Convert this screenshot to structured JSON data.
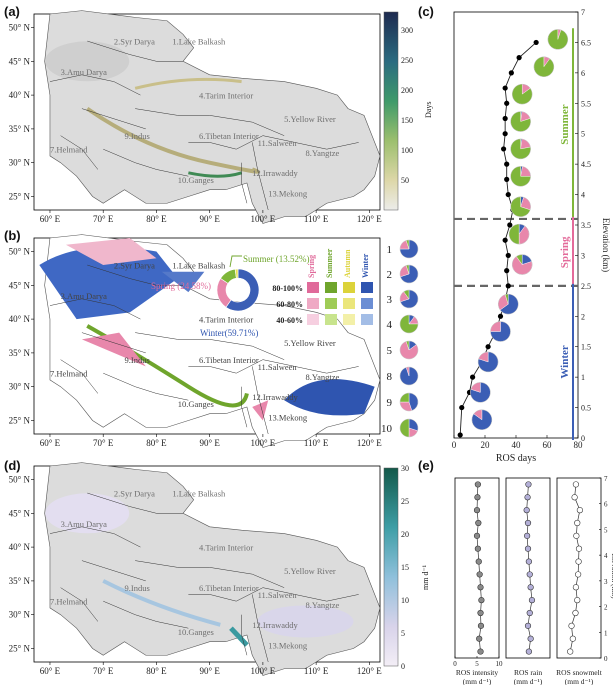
{
  "figure": {
    "panel_labels": [
      "(a)",
      "(b)",
      "(c)",
      "(d)",
      "(e)"
    ]
  },
  "map_axes": {
    "lon_ticks": [
      "60° E",
      "70° E",
      "80° E",
      "90° E",
      "100° E",
      "110° E",
      "120° E"
    ],
    "lat_ticks": [
      "50° N",
      "45° N",
      "40° N",
      "35° N",
      "30° N",
      "25° N"
    ]
  },
  "basins": [
    {
      "id": "2",
      "label": "2.Syr Darya"
    },
    {
      "id": "1",
      "label": "1.Lake Balkash"
    },
    {
      "id": "3",
      "label": "3.Amu Darya"
    },
    {
      "id": "4",
      "label": "4.Tarim Interior"
    },
    {
      "id": "5",
      "label": "5.Yellow River"
    },
    {
      "id": "6",
      "label": "6.Tibetan Interior"
    },
    {
      "id": "7",
      "label": "7.Helmand"
    },
    {
      "id": "8",
      "label": "8.Yangtze"
    },
    {
      "id": "9",
      "label": "9.Indus"
    },
    {
      "id": "10",
      "label": "10.Ganges"
    },
    {
      "id": "11",
      "label": "11.Salween"
    },
    {
      "id": "12",
      "label": "12.Irrawaddy"
    },
    {
      "id": "13",
      "label": "13.Mekong"
    }
  ],
  "panel_a": {
    "colorbar": {
      "label": "Days",
      "ticks": [
        "300",
        "250",
        "200",
        "150",
        "100",
        "50"
      ],
      "range": [
        0,
        330
      ]
    }
  },
  "panel_d": {
    "colorbar": {
      "label": "mm d⁻¹",
      "ticks": [
        "30",
        "25",
        "20",
        "15",
        "10",
        "5",
        "0"
      ],
      "range": [
        0,
        30
      ]
    }
  },
  "panel_b": {
    "donut": {
      "labels": [
        "Summer (13.52%)",
        "Spring (24.58%)",
        "Winter(59.71%)"
      ],
      "slices": [
        {
          "season": "Winter",
          "percent": 59.71,
          "color": "#3b5eb5"
        },
        {
          "season": "Spring",
          "percent": 24.58,
          "color": "#e887ab"
        },
        {
          "season": "Summer",
          "percent": 13.52,
          "color": "#7fb63a"
        },
        {
          "season": "Autumn",
          "percent": 2.19,
          "color": "#e8e25a"
        }
      ]
    },
    "legend": {
      "columns": [
        "Spring",
        "Summer",
        "Autumn",
        "Winter"
      ],
      "rows": [
        "80-100%",
        "60-80%",
        "40-60%"
      ],
      "colors": [
        [
          "#e06a9a",
          "#6fa52c",
          "#dcd33a",
          "#2f55b0"
        ],
        [
          "#efa9c4",
          "#9fcc56",
          "#ebe67b",
          "#6b8ed4"
        ],
        [
          "#f6cfe0",
          "#c8e48d",
          "#f3f0a8",
          "#a3bde6"
        ]
      ]
    },
    "basin_pies": [
      {
        "label": "1",
        "winter": 75,
        "spring": 20,
        "summer": 5,
        "autumn": 0
      },
      {
        "label": "2",
        "winter": 70,
        "spring": 25,
        "summer": 5,
        "autumn": 0
      },
      {
        "label": "3",
        "winter": 70,
        "spring": 20,
        "summer": 10,
        "autumn": 0
      },
      {
        "label": "4",
        "winter": 10,
        "spring": 15,
        "summer": 75,
        "autumn": 0
      },
      {
        "label": "5",
        "winter": 15,
        "spring": 80,
        "summer": 5,
        "autumn": 0
      },
      {
        "label": "8",
        "winter": 95,
        "spring": 5,
        "summer": 0,
        "autumn": 0
      },
      {
        "label": "9",
        "winter": 45,
        "spring": 30,
        "summer": 25,
        "autumn": 0
      },
      {
        "label": "10",
        "winter": 30,
        "spring": 20,
        "summer": 50,
        "autumn": 0
      }
    ]
  },
  "panel_c": {
    "chart_data": {
      "type": "line",
      "xlabel": "ROS days",
      "ylabel": "Elevation (km)",
      "xlim": [
        0,
        80
      ],
      "ylim": [
        0,
        7
      ],
      "xticks": [
        "0",
        "20",
        "40",
        "60",
        "80"
      ],
      "yticks": [
        "0",
        "0.5",
        "1",
        "1.5",
        "2",
        "2.5",
        "3",
        "3.5",
        "4",
        "4.5",
        "5",
        "5.5",
        "6",
        "6.5",
        "7"
      ],
      "zone_labels": [
        "Summer",
        "Spring",
        "Winter"
      ],
      "zone_colors": {
        "Summer": "#7fb63a",
        "Spring": "#e36a9a",
        "Winter": "#3b5eb5"
      },
      "zone_boundaries_km": [
        2.5,
        3.6
      ],
      "points": [
        {
          "elev": 0.05,
          "days": 4
        },
        {
          "elev": 0.5,
          "days": 5
        },
        {
          "elev": 0.75,
          "days": 10
        },
        {
          "elev": 1.0,
          "days": 12
        },
        {
          "elev": 1.25,
          "days": 18
        },
        {
          "elev": 1.5,
          "days": 22
        },
        {
          "elev": 1.75,
          "days": 27
        },
        {
          "elev": 2.0,
          "days": 30
        },
        {
          "elev": 2.25,
          "days": 33
        },
        {
          "elev": 2.5,
          "days": 35
        },
        {
          "elev": 2.75,
          "days": 34
        },
        {
          "elev": 3.0,
          "days": 35
        },
        {
          "elev": 3.25,
          "days": 33
        },
        {
          "elev": 3.5,
          "days": 36
        },
        {
          "elev": 3.75,
          "days": 38
        },
        {
          "elev": 4.0,
          "days": 35
        },
        {
          "elev": 4.25,
          "days": 34
        },
        {
          "elev": 4.5,
          "days": 34
        },
        {
          "elev": 4.75,
          "days": 32
        },
        {
          "elev": 5.0,
          "days": 33
        },
        {
          "elev": 5.25,
          "days": 33
        },
        {
          "elev": 5.5,
          "days": 34
        },
        {
          "elev": 5.75,
          "days": 33
        },
        {
          "elev": 6.0,
          "days": 37
        },
        {
          "elev": 6.25,
          "days": 42
        },
        {
          "elev": 6.5,
          "days": 53
        }
      ],
      "pies": [
        {
          "elev": 0.3,
          "days": 18,
          "winter": 85,
          "spring": 15,
          "summer": 0
        },
        {
          "elev": 0.75,
          "days": 17,
          "winter": 80,
          "spring": 20,
          "summer": 0
        },
        {
          "elev": 1.25,
          "days": 22,
          "winter": 80,
          "spring": 20,
          "summer": 0
        },
        {
          "elev": 1.75,
          "days": 30,
          "winter": 75,
          "spring": 25,
          "summer": 0
        },
        {
          "elev": 2.2,
          "days": 35,
          "winter": 65,
          "spring": 30,
          "summer": 5
        },
        {
          "elev": 2.85,
          "days": 44,
          "winter": 20,
          "spring": 70,
          "summer": 10
        },
        {
          "elev": 3.35,
          "days": 42,
          "winter": 10,
          "spring": 40,
          "summer": 50
        },
        {
          "elev": 3.8,
          "days": 43,
          "winter": 5,
          "spring": 25,
          "summer": 70
        },
        {
          "elev": 4.3,
          "days": 43,
          "winter": 3,
          "spring": 22,
          "summer": 75
        },
        {
          "elev": 4.75,
          "days": 43,
          "winter": 2,
          "spring": 20,
          "summer": 78
        },
        {
          "elev": 5.2,
          "days": 43,
          "winter": 2,
          "spring": 18,
          "summer": 80
        },
        {
          "elev": 5.65,
          "days": 44,
          "winter": 0,
          "spring": 15,
          "summer": 85
        },
        {
          "elev": 6.1,
          "days": 58,
          "winter": 0,
          "spring": 10,
          "summer": 90
        },
        {
          "elev": 6.55,
          "days": 67,
          "winter": 0,
          "spring": 5,
          "summer": 95
        }
      ]
    }
  },
  "panel_e": {
    "chart_data": [
      {
        "type": "line",
        "xlabel": "ROS intensity",
        "unit": "(mm d⁻¹)",
        "xlim": [
          0,
          10
        ],
        "xticks": [
          "0",
          "5",
          "10"
        ],
        "marker_color": "#8a8a8a",
        "y_elev": [
          0.25,
          0.75,
          1.25,
          1.75,
          2.25,
          2.75,
          3.25,
          3.75,
          4.25,
          4.75,
          5.25,
          5.75,
          6.25,
          6.75
        ],
        "values": [
          5.8,
          5.5,
          5.9,
          5.8,
          6.0,
          5.8,
          5.6,
          5.4,
          5.2,
          5.0,
          5.3,
          5.0,
          5.1,
          5.2
        ]
      },
      {
        "type": "line",
        "xlabel": "ROS rain",
        "unit": "(mm d⁻¹)",
        "xlim": [
          0,
          10
        ],
        "marker_color": "#b4b0d8",
        "y_elev": [
          0.25,
          0.75,
          1.25,
          1.75,
          2.25,
          2.75,
          3.25,
          3.75,
          4.25,
          4.75,
          5.25,
          5.75,
          6.25,
          6.75
        ],
        "values": [
          5.2,
          5.6,
          5.0,
          5.4,
          5.9,
          5.6,
          5.4,
          5.2,
          5.0,
          4.8,
          5.0,
          4.7,
          4.9,
          5.1
        ]
      },
      {
        "type": "line",
        "xlabel": "ROS snowmelt",
        "unit": "(mm d⁻¹)",
        "xlim": [
          0,
          10
        ],
        "marker_color": "#ffffff",
        "y_elev": [
          0.25,
          0.75,
          1.25,
          1.75,
          2.25,
          2.75,
          3.25,
          3.75,
          4.25,
          4.75,
          5.25,
          5.75,
          6.25,
          6.75
        ],
        "values": [
          3.0,
          3.6,
          3.3,
          4.2,
          4.6,
          4.3,
          4.8,
          4.9,
          5.0,
          4.4,
          4.6,
          5.2,
          4.0,
          4.3
        ]
      }
    ],
    "ylabel": "Elevation (km)",
    "yticks": [
      "0",
      "1",
      "2",
      "3",
      "4",
      "5",
      "6",
      "7"
    ]
  }
}
